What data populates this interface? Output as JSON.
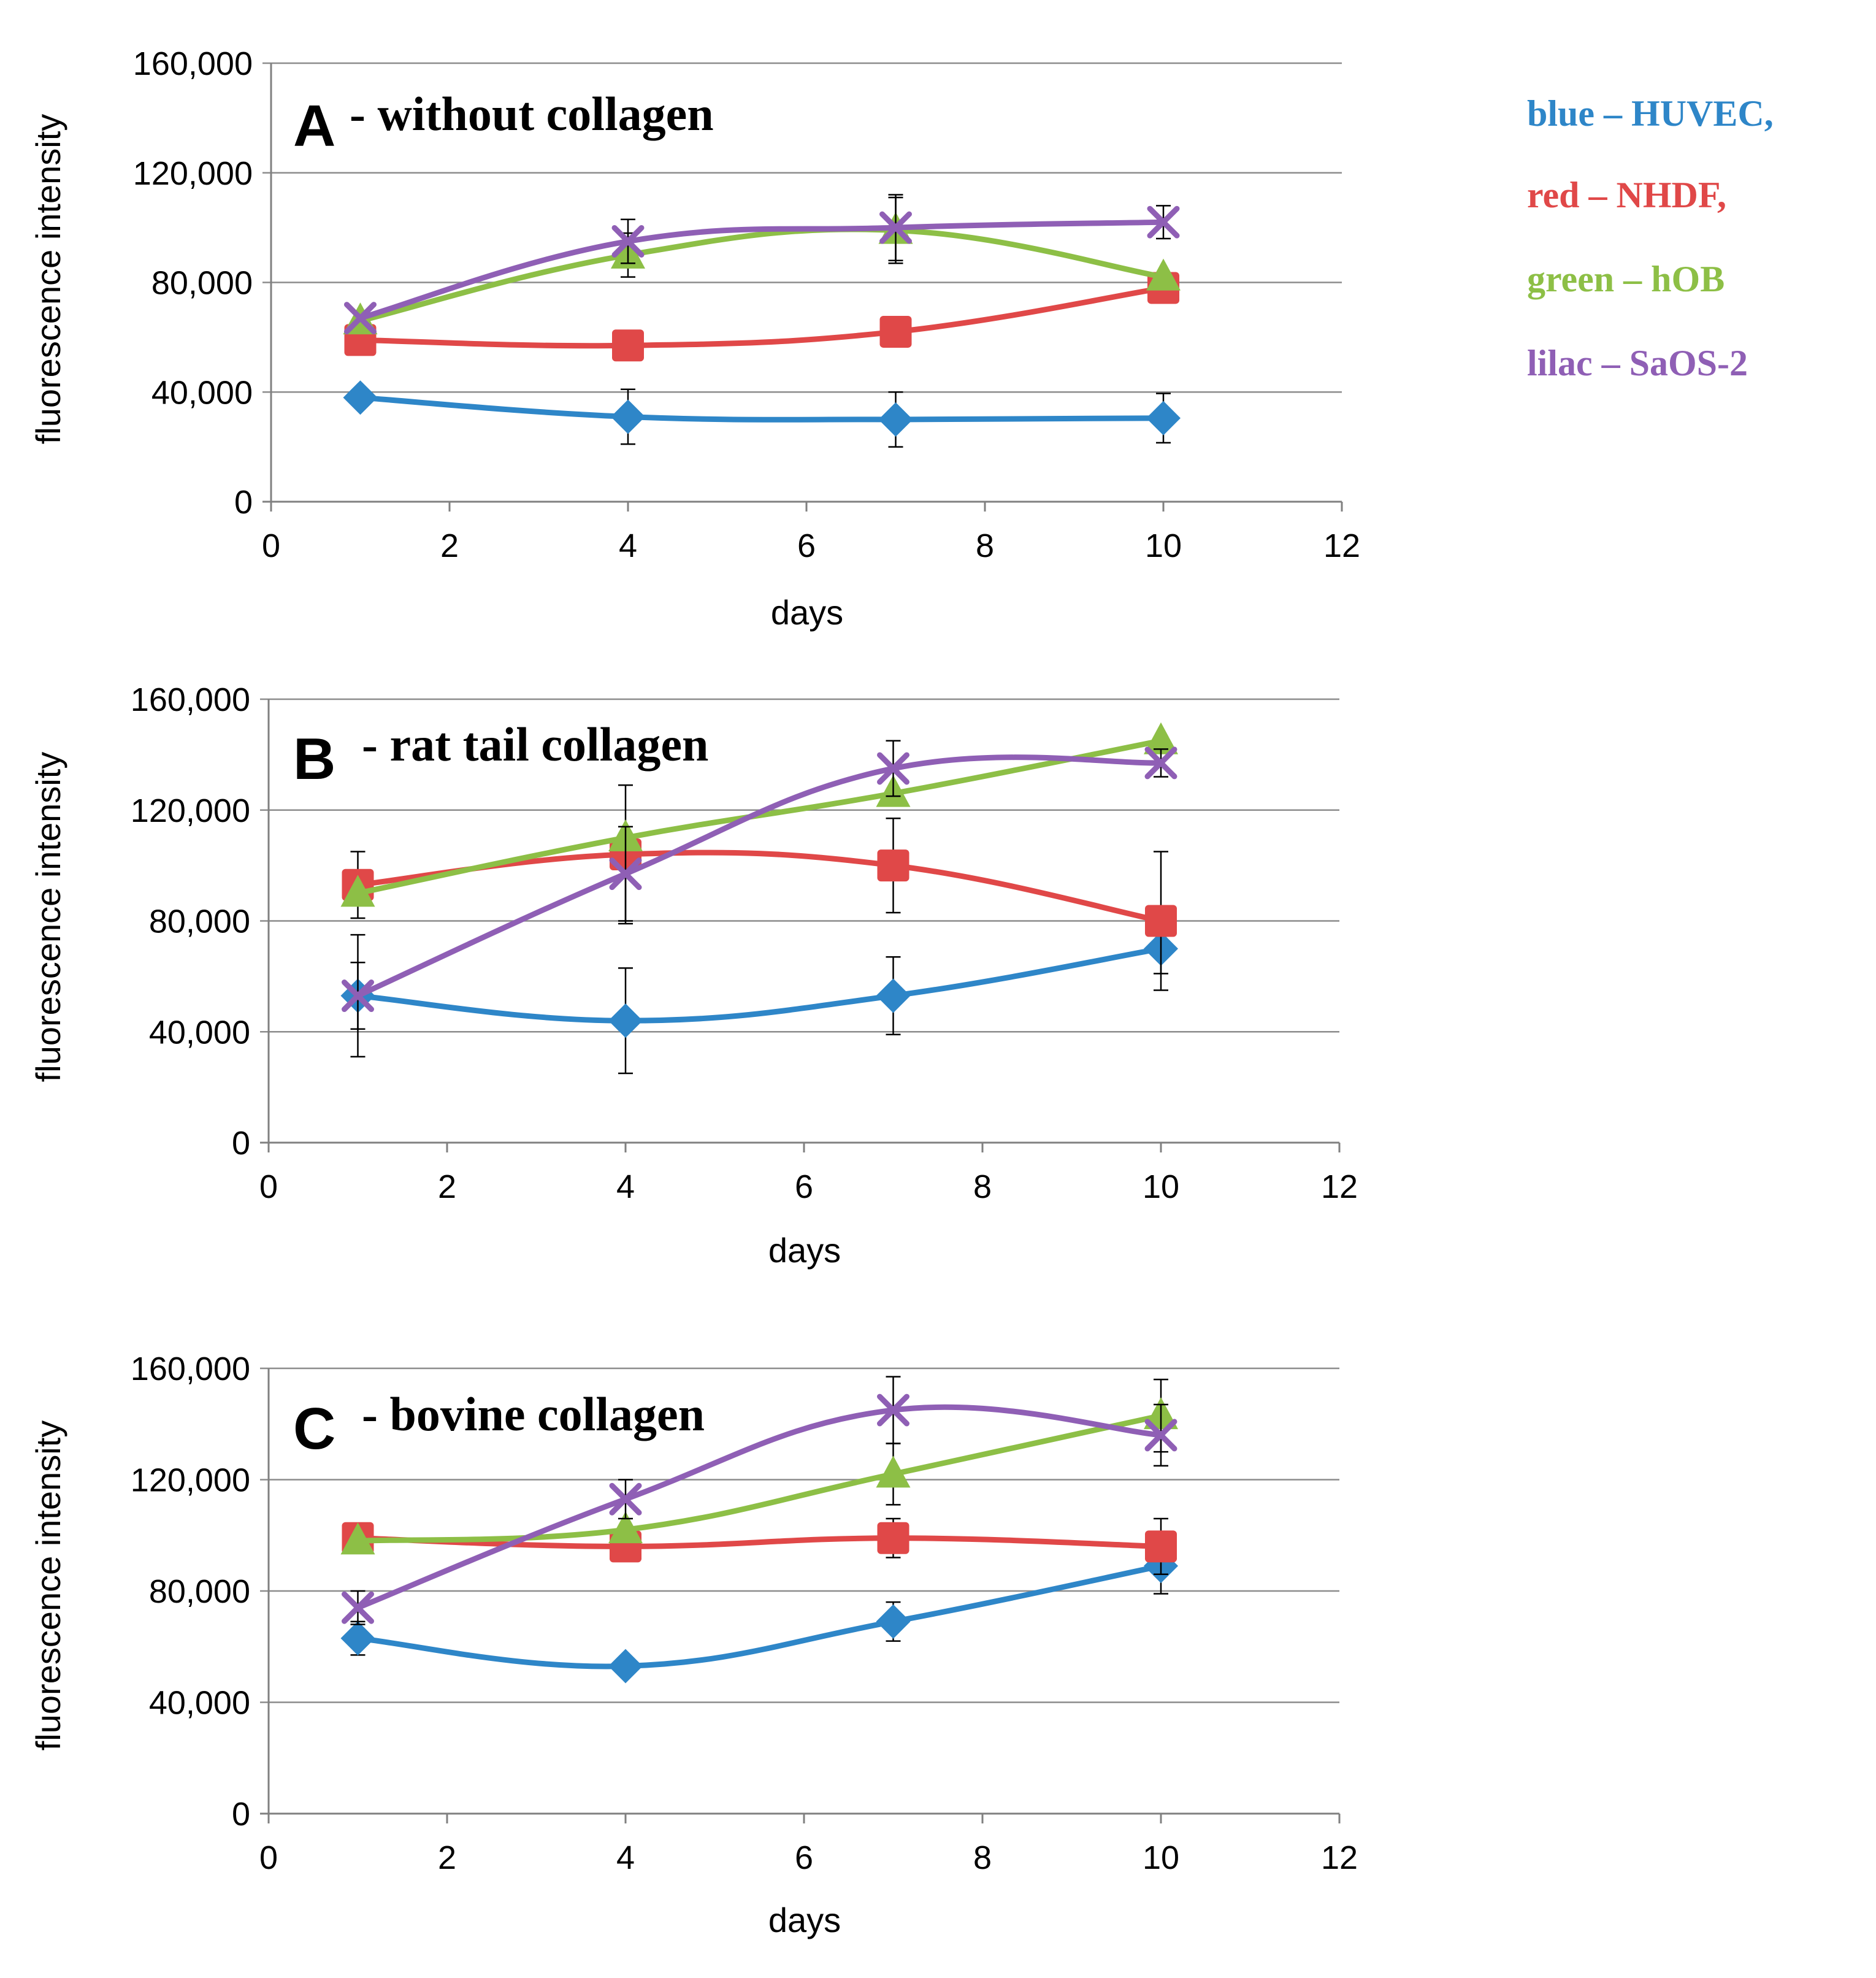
{
  "legend": {
    "items": [
      {
        "text": "blue – HUVEC,",
        "color": "#2E86C8"
      },
      {
        "text": "red – NHDF,",
        "color": "#E04848"
      },
      {
        "text": "green – hOB",
        "color": "#8DBF46"
      },
      {
        "text": "lilac – SaOS-2",
        "color": "#8F5FB5"
      }
    ]
  },
  "chart_data": [
    {
      "type": "line",
      "title_letter": "A",
      "title_text": "- without collagen",
      "xlabel": "days",
      "ylabel": "fluorescence intensity",
      "xlim": [
        0,
        12
      ],
      "ylim": [
        0,
        160000
      ],
      "x_ticks": [
        "0",
        "2",
        "4",
        "6",
        "8",
        "10",
        "12"
      ],
      "y_ticks": [
        "0",
        "40,000",
        "80,000",
        "120,000",
        "160,000"
      ],
      "x": [
        1,
        4,
        7,
        10
      ],
      "series": [
        {
          "name": "HUVEC",
          "color": "#2E86C8",
          "marker": "diamond",
          "values": [
            38000,
            31000,
            30000,
            30500
          ],
          "errors": [
            0,
            10000,
            10000,
            9000
          ]
        },
        {
          "name": "NHDF",
          "color": "#E04848",
          "marker": "square",
          "values": [
            59000,
            57000,
            62000,
            78000
          ],
          "errors": [
            0,
            0,
            0,
            0
          ]
        },
        {
          "name": "hOB",
          "color": "#8DBF46",
          "marker": "triangle",
          "values": [
            66000,
            90000,
            99000,
            82000
          ],
          "errors": [
            0,
            8000,
            12000,
            0
          ]
        },
        {
          "name": "SaOS-2",
          "color": "#8F5FB5",
          "marker": "x",
          "values": [
            67000,
            95000,
            100000,
            102000
          ],
          "errors": [
            0,
            8000,
            12000,
            6000
          ]
        }
      ]
    },
    {
      "type": "line",
      "title_letter": "B",
      "title_text": "- rat tail collagen",
      "xlabel": "days",
      "ylabel": "fluorescence intensity",
      "xlim": [
        0,
        12
      ],
      "ylim": [
        0,
        160000
      ],
      "x_ticks": [
        "0",
        "2",
        "4",
        "6",
        "8",
        "10",
        "12"
      ],
      "y_ticks": [
        "0",
        "40,000",
        "80,000",
        "120,000",
        "160,000"
      ],
      "x": [
        1,
        4,
        7,
        10
      ],
      "series": [
        {
          "name": "HUVEC",
          "color": "#2E86C8",
          "marker": "diamond",
          "values": [
            53000,
            44000,
            53000,
            70000
          ],
          "errors": [
            22000,
            19000,
            14000,
            9000
          ]
        },
        {
          "name": "NHDF",
          "color": "#E04848",
          "marker": "square",
          "values": [
            93000,
            104000,
            100000,
            80000
          ],
          "errors": [
            12000,
            25000,
            17000,
            25000
          ]
        },
        {
          "name": "hOB",
          "color": "#8DBF46",
          "marker": "triangle",
          "values": [
            90000,
            110000,
            126000,
            145000
          ],
          "errors": [
            0,
            0,
            0,
            0
          ]
        },
        {
          "name": "SaOS-2",
          "color": "#8F5FB5",
          "marker": "x",
          "values": [
            53000,
            97000,
            135000,
            137000
          ],
          "errors": [
            12000,
            17000,
            10000,
            5000
          ]
        }
      ]
    },
    {
      "type": "line",
      "title_letter": "C",
      "title_text": "- bovine collagen",
      "xlabel": "days",
      "ylabel": "fluorescence intensity",
      "xlim": [
        0,
        12
      ],
      "ylim": [
        0,
        160000
      ],
      "x_ticks": [
        "0",
        "2",
        "4",
        "6",
        "8",
        "10",
        "12"
      ],
      "y_ticks": [
        "0",
        "40,000",
        "80,000",
        "120,000",
        "160,000"
      ],
      "x": [
        1,
        4,
        7,
        10
      ],
      "series": [
        {
          "name": "HUVEC",
          "color": "#2E86C8",
          "marker": "diamond",
          "values": [
            63000,
            53000,
            69000,
            89000
          ],
          "errors": [
            6000,
            0,
            7000,
            10000
          ]
        },
        {
          "name": "NHDF",
          "color": "#E04848",
          "marker": "square",
          "values": [
            99000,
            96000,
            99000,
            96000
          ],
          "errors": [
            0,
            0,
            7000,
            10000
          ]
        },
        {
          "name": "hOB",
          "color": "#8DBF46",
          "marker": "triangle",
          "values": [
            98000,
            102000,
            122000,
            143000
          ],
          "errors": [
            0,
            0,
            11000,
            13000
          ]
        },
        {
          "name": "SaOS-2",
          "color": "#8F5FB5",
          "marker": "x",
          "values": [
            74000,
            113000,
            145000,
            136000
          ],
          "errors": [
            6000,
            7000,
            12000,
            11000
          ]
        }
      ]
    }
  ]
}
